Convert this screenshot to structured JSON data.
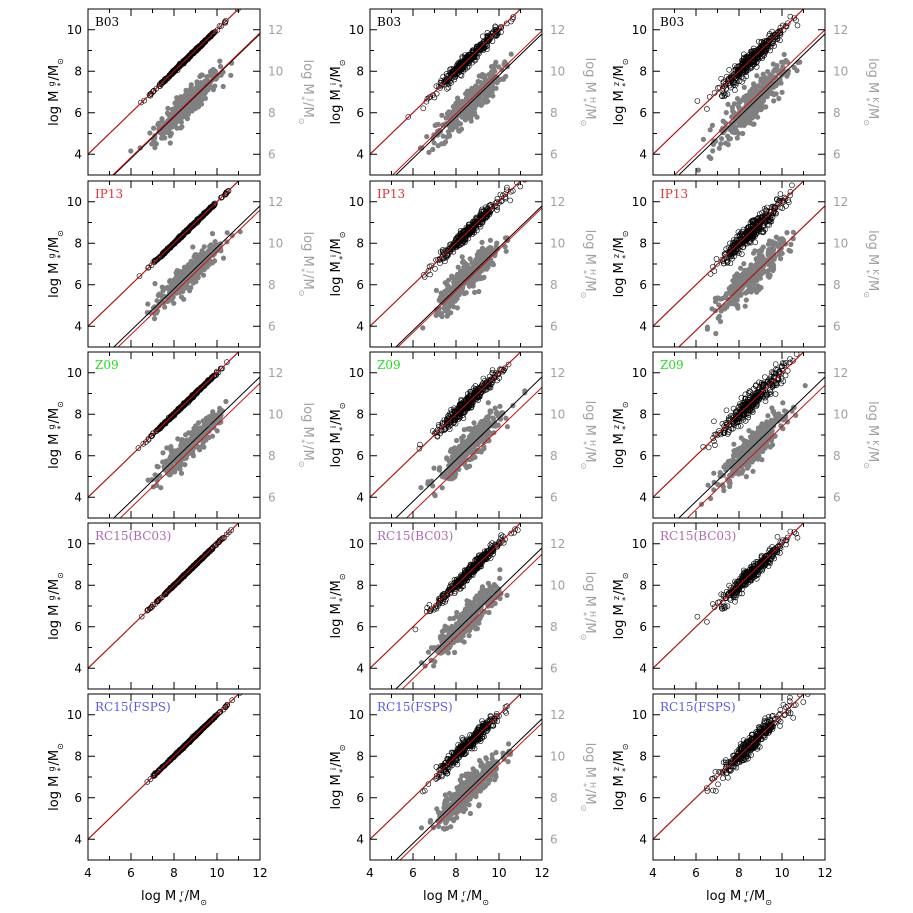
{
  "chart_data": {
    "type": "scatter",
    "layout": "5 rows x 3 columns",
    "x_axis": {
      "label": "log M",
      "label_parts": [
        "log M",
        "r",
        "*",
        "/M",
        "⊙"
      ],
      "range": [
        4,
        12
      ],
      "ticks": [
        "4",
        "6",
        "8",
        "10",
        "12"
      ]
    },
    "row_models": [
      {
        "label": "B03",
        "color": "#000000"
      },
      {
        "label": "IP13",
        "color": "#e8323a"
      },
      {
        "label": "Z09",
        "color": "#22dd22"
      },
      {
        "label": "RC15(BC03)",
        "color": "#b06ab0"
      },
      {
        "label": "RC15(FSPS)",
        "color": "#5a5af0"
      }
    ],
    "left_axes": [
      {
        "band": "g",
        "text": "log M",
        "range": [
          3,
          11
        ],
        "ticks": [
          "4",
          "6",
          "8",
          "10"
        ]
      },
      {
        "band": "i",
        "text": "log M",
        "range": [
          3,
          11
        ],
        "ticks": [
          "4",
          "6",
          "8",
          "10"
        ]
      },
      {
        "band": "z",
        "text": "log M",
        "range": [
          3,
          11
        ],
        "ticks": [
          "4",
          "6",
          "8",
          "10"
        ]
      }
    ],
    "right_axes": [
      {
        "band": "J",
        "text": "log M",
        "range": [
          5,
          13
        ],
        "ticks": [
          "6",
          "8",
          "10",
          "12"
        ],
        "color": "#a0a0a0"
      },
      {
        "band": "H",
        "text": "log M",
        "range": [
          5,
          13
        ],
        "ticks": [
          "6",
          "8",
          "10",
          "12"
        ],
        "color": "#a0a0a0"
      },
      {
        "band": "K",
        "text": "log M",
        "range": [
          5,
          13
        ],
        "ticks": [
          "6",
          "8",
          "10",
          "12"
        ],
        "color": "#a0a0a0"
      }
    ],
    "right_axis_rows": [
      0,
      1,
      2
    ],
    "right_axis_extra": [
      {
        "row": 3,
        "col": 1
      },
      {
        "row": 4,
        "col": 1
      }
    ],
    "colors": {
      "optical_points": "#000000",
      "nir_points": "#808080",
      "one_to_one": "#000000",
      "fit": "#cc1111",
      "axis_gray": "#a0a0a0"
    },
    "series": [
      {
        "row": 0,
        "col": 0,
        "open": {
          "slope": 1.0,
          "intercept": 0.0,
          "scatter": 0.03
        },
        "filled": {
          "slope": 1.0,
          "intercept": -2.2,
          "scatter": 0.32
        },
        "fit_offset_open": 0.0,
        "fit_offset_filled": 0.05
      },
      {
        "row": 0,
        "col": 1,
        "open": {
          "slope": 1.0,
          "intercept": 0.0,
          "scatter": 0.15
        },
        "filled": {
          "slope": 1.0,
          "intercept": -2.2,
          "scatter": 0.38
        },
        "fit_offset_open": 0.0,
        "fit_offset_filled": 0.15
      },
      {
        "row": 0,
        "col": 2,
        "open": {
          "slope": 1.0,
          "intercept": 0.0,
          "scatter": 0.24
        },
        "filled": {
          "slope": 1.0,
          "intercept": -2.2,
          "scatter": 0.45
        },
        "fit_offset_open": 0.0,
        "fit_offset_filled": 0.2
      },
      {
        "row": 1,
        "col": 0,
        "open": {
          "slope": 1.0,
          "intercept": 0.0,
          "scatter": 0.03
        },
        "filled": {
          "slope": 1.0,
          "intercept": -2.2,
          "scatter": 0.32
        },
        "fit_offset_open": 0.0,
        "fit_offset_filled": -0.2
      },
      {
        "row": 1,
        "col": 1,
        "open": {
          "slope": 1.0,
          "intercept": 0.0,
          "scatter": 0.15
        },
        "filled": {
          "slope": 1.0,
          "intercept": -2.2,
          "scatter": 0.38
        },
        "fit_offset_open": 0.0,
        "fit_offset_filled": -0.1
      },
      {
        "row": 1,
        "col": 2,
        "open": {
          "slope": 1.0,
          "intercept": 0.0,
          "scatter": 0.24
        },
        "filled": {
          "slope": 1.0,
          "intercept": -2.2,
          "scatter": 0.4
        },
        "fit_offset_open": 0.0,
        "fit_offset_filled": 0.0
      },
      {
        "row": 2,
        "col": 0,
        "open": {
          "slope": 1.0,
          "intercept": 0.0,
          "scatter": 0.03
        },
        "filled": {
          "slope": 1.0,
          "intercept": -2.2,
          "scatter": 0.3
        },
        "fit_offset_open": 0.0,
        "fit_offset_filled": -0.3
      },
      {
        "row": 2,
        "col": 1,
        "open": {
          "slope": 1.0,
          "intercept": 0.0,
          "scatter": 0.18
        },
        "filled": {
          "slope": 1.0,
          "intercept": -2.2,
          "scatter": 0.38
        },
        "fit_offset_open": 0.0,
        "fit_offset_filled": -0.5
      },
      {
        "row": 2,
        "col": 2,
        "open": {
          "slope": 1.0,
          "intercept": 0.0,
          "scatter": 0.26
        },
        "filled": {
          "slope": 1.0,
          "intercept": -2.2,
          "scatter": 0.42
        },
        "fit_offset_open": 0.0,
        "fit_offset_filled": -0.4
      },
      {
        "row": 3,
        "col": 0,
        "open": {
          "slope": 1.0,
          "intercept": 0.0,
          "scatter": 0.02
        },
        "filled": null,
        "fit_offset_open": 0.0,
        "fit_offset_filled": 0.0
      },
      {
        "row": 3,
        "col": 1,
        "open": {
          "slope": 1.0,
          "intercept": 0.0,
          "scatter": 0.16
        },
        "filled": {
          "slope": 1.0,
          "intercept": -2.2,
          "scatter": 0.38
        },
        "fit_offset_open": 0.0,
        "fit_offset_filled": -0.3
      },
      {
        "row": 3,
        "col": 2,
        "open": {
          "slope": 1.0,
          "intercept": 0.0,
          "scatter": 0.2
        },
        "filled": null,
        "fit_offset_open": 0.0,
        "fit_offset_filled": 0.0
      },
      {
        "row": 4,
        "col": 0,
        "open": {
          "slope": 1.0,
          "intercept": 0.0,
          "scatter": 0.02
        },
        "filled": null,
        "fit_offset_open": 0.0,
        "fit_offset_filled": 0.0
      },
      {
        "row": 4,
        "col": 1,
        "open": {
          "slope": 1.0,
          "intercept": 0.0,
          "scatter": 0.18
        },
        "filled": {
          "slope": 1.0,
          "intercept": -2.2,
          "scatter": 0.4
        },
        "fit_offset_open": 0.0,
        "fit_offset_filled": -0.2
      },
      {
        "row": 4,
        "col": 2,
        "open": {
          "slope": 1.0,
          "intercept": 0.0,
          "scatter": 0.22
        },
        "filled": null,
        "fit_offset_open": 0.0,
        "fit_offset_filled": 0.0
      }
    ],
    "x_distribution": {
      "mean": 8.6,
      "std": 0.75,
      "min": 4.7,
      "max": 11.2,
      "points_per_series": 330
    },
    "grid": false,
    "legend": "none"
  }
}
